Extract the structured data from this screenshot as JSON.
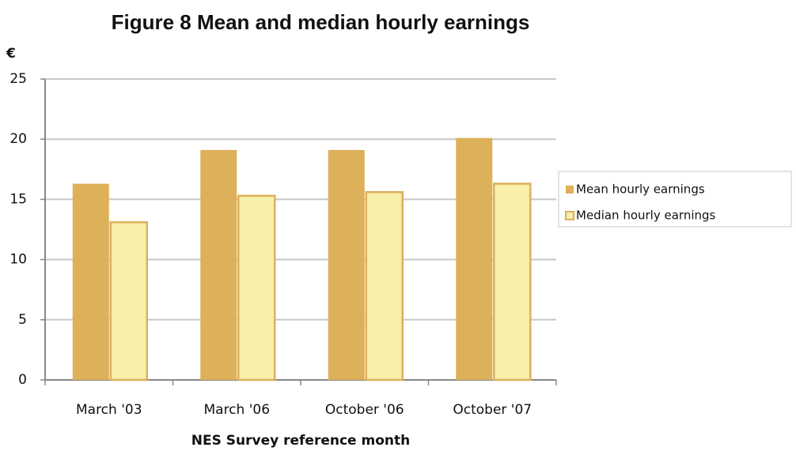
{
  "chart_data": {
    "type": "bar",
    "title": "Figure 8 Mean and median hourly earnings",
    "y_label": "€",
    "x_label": "NES Survey reference month",
    "categories": [
      "March '03",
      "March '06",
      "October '06",
      "October '07"
    ],
    "series": [
      {
        "name": "Mean hourly earnings",
        "color": "#ddb05a",
        "values": [
          16.3,
          19.1,
          19.1,
          20.1
        ]
      },
      {
        "name": "Median hourly earnings",
        "color": "#f7efaa",
        "edgecolor": "#ddb05a",
        "values": [
          13.1,
          15.3,
          15.6,
          16.3
        ]
      }
    ],
    "ylim": [
      0,
      25
    ],
    "yticks": [
      0,
      5,
      10,
      15,
      20,
      25
    ],
    "grid": true,
    "legend": "right"
  }
}
